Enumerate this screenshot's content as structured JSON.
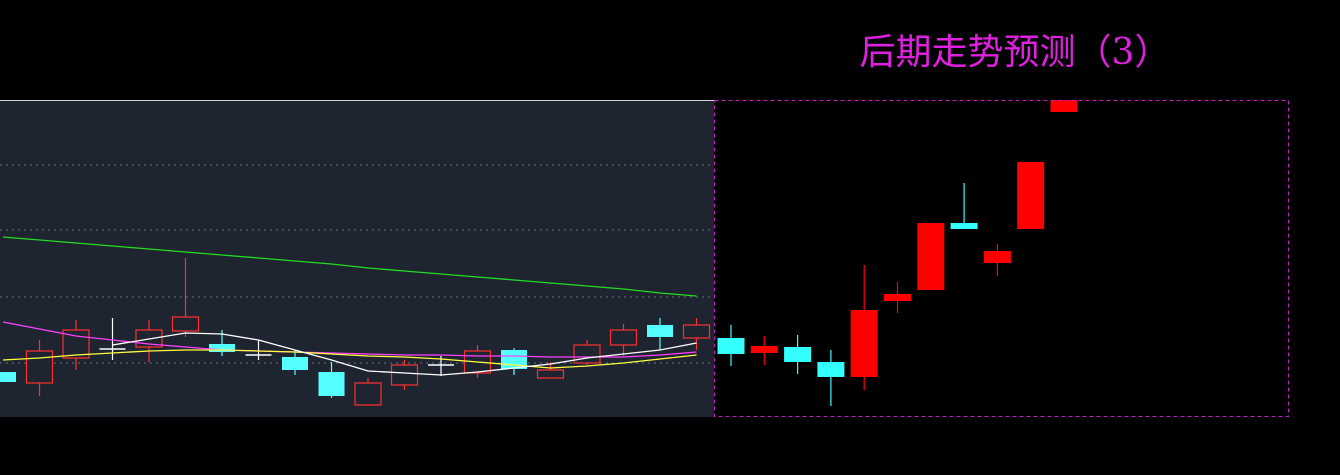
{
  "chart_data": [
    {
      "type": "candlestick",
      "ylim": [
        0,
        317
      ],
      "yticks": [
        54,
        120,
        187,
        252
      ],
      "grid": true,
      "background": "#1e2530",
      "up_color": "#ff3030",
      "down_color": "#54ffff",
      "flat_color": "#ffffff",
      "hollow_up": true,
      "categories": [
        null,
        null,
        null,
        null,
        null,
        null,
        null,
        null,
        null,
        null,
        null,
        null,
        null,
        null,
        null,
        null,
        null,
        null,
        null,
        null
      ],
      "open": [
        45,
        34,
        59,
        68,
        70,
        86,
        73,
        62,
        60,
        45,
        12,
        32,
        52,
        44,
        67,
        39,
        54,
        72,
        92,
        79
      ],
      "close": [
        35,
        66,
        87,
        68,
        87,
        100,
        65,
        62,
        47,
        21,
        34,
        52,
        52,
        66,
        48,
        47,
        72,
        87,
        80,
        92
      ],
      "high": [
        45,
        77,
        97,
        99,
        97,
        159,
        87,
        77,
        67,
        55,
        39,
        57,
        61,
        72,
        69,
        55,
        77,
        93,
        99,
        99
      ],
      "low": [
        35,
        21,
        47,
        57,
        55,
        80,
        61,
        57,
        42,
        19,
        12,
        27,
        41,
        39,
        42,
        39,
        52,
        61,
        67,
        67
      ],
      "lines": [
        {
          "color": "#22dd22",
          "values": [
            180,
            177,
            174,
            171,
            168,
            165,
            162,
            159,
            156,
            153,
            149,
            146,
            143,
            140,
            137,
            134,
            131,
            128,
            124,
            121
          ]
        },
        {
          "color": "#ff40ff",
          "values": [
            95,
            88,
            81,
            77,
            73,
            70,
            67,
            66,
            65,
            64,
            63,
            62,
            62,
            61,
            61,
            60,
            60,
            60,
            62,
            65
          ]
        },
        {
          "color": "#ffff40",
          "values": [
            57,
            59,
            62,
            64,
            66,
            67,
            67,
            66,
            65,
            63,
            61,
            60,
            58,
            55,
            52,
            49,
            51,
            54,
            58,
            62
          ]
        },
        {
          "color": "#ffffff",
          "values": [
            null,
            null,
            null,
            72,
            78,
            84,
            83,
            77,
            67,
            57,
            46,
            44,
            42,
            45,
            49,
            53,
            59,
            63,
            67,
            74
          ]
        }
      ]
    },
    {
      "type": "candlestick",
      "title": "后期走势预测（3）",
      "title_color": "#e020e0",
      "ylim": [
        0,
        317
      ],
      "background": "#000000",
      "border_color": "#c020c0",
      "up_color": "#ff0000",
      "down_color": "#33ffff",
      "hollow_up": false,
      "categories": [
        null,
        null,
        null,
        null,
        null,
        null,
        null,
        null,
        null,
        null,
        null
      ],
      "open": [
        79,
        64,
        70,
        55,
        40,
        116,
        127,
        194,
        154,
        188,
        305
      ],
      "close": [
        63,
        71,
        55,
        40,
        107,
        123,
        194,
        188,
        166,
        255,
        317
      ],
      "high": [
        92,
        81,
        82,
        67,
        152,
        135,
        194,
        234,
        173,
        255,
        317
      ],
      "low": [
        51,
        52,
        43,
        11,
        27,
        104,
        127,
        188,
        141,
        188,
        305
      ]
    }
  ]
}
